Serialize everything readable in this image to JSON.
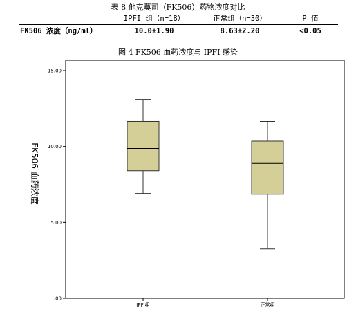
{
  "table": {
    "title": "表 8 他克莫司（FK506）药物浓度对比",
    "headers": [
      "",
      "IPFI 组（n=18）",
      "正常组（n=30）",
      "P 值"
    ],
    "row": [
      "FK506 浓度（ng/ml）",
      "10.0±1.90",
      "8.63±2.20",
      "<0.05"
    ]
  },
  "figure_caption": "图 4 FK506 血药浓度与 IPFI 感染",
  "colors": {
    "box_fill": "#d4cf96",
    "box_stroke": "#333333",
    "frame": "#000000"
  },
  "chart_data": {
    "type": "box",
    "ylabel": "FK506 血药浓度",
    "ylim": [
      0,
      15
    ],
    "yticks": [
      0,
      5,
      10,
      15
    ],
    "ytick_labels": [
      ".00",
      "5.00",
      "10.00",
      "15.00"
    ],
    "categories": [
      "IPFI组",
      "正常组"
    ],
    "boxes": [
      {
        "category": "IPFI组",
        "min": 6.9,
        "q1": 8.4,
        "median": 9.85,
        "q3": 11.65,
        "max": 13.1
      },
      {
        "category": "正常组",
        "min": 3.25,
        "q1": 6.85,
        "median": 8.9,
        "q3": 10.35,
        "max": 11.65
      }
    ]
  }
}
